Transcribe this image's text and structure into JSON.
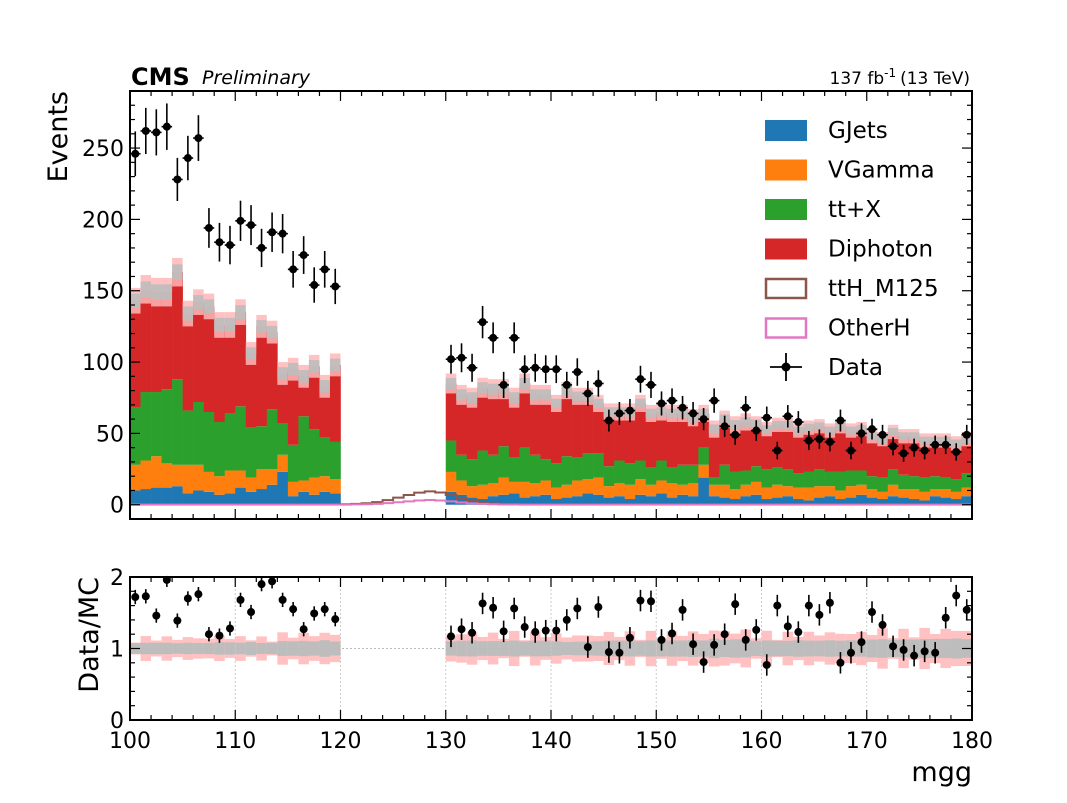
{
  "header": {
    "experiment": "CMS",
    "status": "Preliminary",
    "lumi_value": "137 fb",
    "lumi_exp": "-1",
    "energy": "(13 TeV)"
  },
  "chart_data": {
    "type": "histogram-stack-with-ratio",
    "xlabel": "mgg",
    "ylabel": "Events",
    "ratio_ylabel": "Data/MC",
    "xlim": [
      100,
      180
    ],
    "ylim": [
      -10,
      290
    ],
    "ratio_ylim": [
      0,
      2
    ],
    "x_ticks": [
      100,
      110,
      120,
      130,
      140,
      150,
      160,
      170,
      180
    ],
    "y_ticks": [
      0,
      50,
      100,
      150,
      200,
      250
    ],
    "ratio_ticks": [
      0,
      1,
      2
    ],
    "legend_position": "top-right",
    "colors": {
      "GJets": "#1f77b4",
      "VGamma": "#ff7f0e",
      "tt+X": "#2ca02c",
      "Diphoton": "#d62728",
      "ttH_M125": "#8c564b",
      "OtherH": "#e377c2",
      "unc_stat": "#bdbdbd",
      "unc_syst": "#ffb6b6"
    },
    "legend": [
      {
        "name": "GJets",
        "style": "fill"
      },
      {
        "name": "VGamma",
        "style": "fill"
      },
      {
        "name": "tt+X",
        "style": "fill"
      },
      {
        "name": "Diphoton",
        "style": "fill"
      },
      {
        "name": "ttH_M125",
        "style": "line"
      },
      {
        "name": "OtherH",
        "style": "line"
      },
      {
        "name": "Data",
        "style": "marker"
      }
    ],
    "bin_edges": [
      100,
      180
    ],
    "n_bins": 80,
    "blinded_region": [
      120,
      130
    ],
    "series_sidebands": {
      "GJets": [
        10,
        11,
        12,
        12,
        13,
        8,
        10,
        9,
        7,
        8,
        12,
        9,
        11,
        14,
        23,
        6,
        9,
        7,
        9,
        8,
        0,
        0,
        0,
        0,
        0,
        0,
        0,
        0,
        0,
        0,
        9,
        7,
        5,
        4,
        6,
        7,
        8,
        5,
        6,
        7,
        4,
        5,
        6,
        8,
        7,
        5,
        6,
        4,
        7,
        6,
        8,
        5,
        7,
        6,
        19,
        6,
        5,
        4,
        6,
        7,
        4,
        5,
        6,
        4,
        3,
        5,
        6,
        4,
        5,
        7,
        5,
        4,
        6,
        5,
        4,
        3,
        6,
        5,
        4,
        6
      ],
      "VGamma": [
        18,
        20,
        22,
        17,
        15,
        20,
        18,
        14,
        13,
        16,
        12,
        10,
        14,
        11,
        12,
        10,
        8,
        12,
        11,
        10,
        0,
        0,
        0,
        0,
        0,
        0,
        0,
        0,
        0,
        0,
        14,
        10,
        8,
        10,
        9,
        12,
        8,
        11,
        9,
        10,
        8,
        9,
        11,
        10,
        12,
        8,
        9,
        10,
        11,
        8,
        9,
        10,
        7,
        9,
        9,
        8,
        9,
        7,
        8,
        9,
        8,
        9,
        7,
        8,
        9,
        8,
        7,
        6,
        8,
        7,
        6,
        5,
        8,
        6,
        7,
        6,
        5,
        6,
        5,
        6
      ],
      "tt+X": [
        40,
        48,
        45,
        52,
        60,
        38,
        44,
        42,
        38,
        40,
        45,
        35,
        30,
        42,
        22,
        26,
        45,
        34,
        27,
        26,
        0,
        0,
        0,
        0,
        0,
        0,
        0,
        0,
        0,
        0,
        22,
        18,
        19,
        24,
        20,
        22,
        17,
        24,
        20,
        15,
        17,
        20,
        16,
        18,
        17,
        14,
        16,
        15,
        13,
        12,
        14,
        11,
        14,
        13,
        12,
        5,
        14,
        12,
        10,
        11,
        13,
        12,
        12,
        10,
        11,
        12,
        10,
        13,
        11,
        10,
        9,
        10,
        11,
        10,
        9,
        10,
        9,
        8,
        9,
        10
      ],
      "Diphoton": [
        75,
        72,
        70,
        68,
        75,
        68,
        70,
        74,
        68,
        62,
        66,
        52,
        70,
        54,
        35,
        53,
        28,
        44,
        36,
        54,
        0,
        0,
        0,
        0,
        0,
        0,
        0,
        0,
        0,
        0,
        40,
        42,
        43,
        44,
        46,
        40,
        42,
        45,
        42,
        45,
        42,
        46,
        43,
        40,
        35,
        38,
        34,
        36,
        40,
        38,
        34,
        38,
        36,
        33,
        24,
        34,
        32,
        33,
        34,
        30,
        28,
        30,
        31,
        30,
        31,
        30,
        29,
        32,
        28,
        29,
        28,
        27,
        26,
        27,
        28,
        26,
        25,
        26,
        25,
        24
      ],
      "total_unc": [
        9,
        10,
        10,
        10,
        10,
        9,
        9,
        9,
        9,
        9,
        9,
        8,
        8,
        8,
        8,
        8,
        8,
        8,
        8,
        8,
        0,
        0,
        0,
        0,
        0,
        0,
        0,
        0,
        0,
        0,
        7,
        7,
        7,
        7,
        7,
        7,
        7,
        7,
        7,
        7,
        6,
        6,
        6,
        6,
        6,
        6,
        6,
        6,
        6,
        6,
        6,
        6,
        6,
        6,
        6,
        6,
        6,
        6,
        6,
        5,
        5,
        5,
        5,
        5,
        5,
        5,
        5,
        5,
        5,
        5,
        5,
        5,
        5,
        5,
        5,
        5,
        5,
        5,
        5,
        5
      ]
    },
    "ttH_M125": [
      0.2,
      0.2,
      0.2,
      0.2,
      0.2,
      0.2,
      0.2,
      0.2,
      0.2,
      0.2,
      0.2,
      0.2,
      0.2,
      0.2,
      0.2,
      0.2,
      0.2,
      0.2,
      0.2,
      0.2,
      0.3,
      0.6,
      1.0,
      1.8,
      3.2,
      5.0,
      6.8,
      8.5,
      9.4,
      8.6,
      6.8,
      4.6,
      2.8,
      1.6,
      0.9,
      0.5,
      0.4,
      0.3,
      0.3,
      0.3,
      0.2,
      0.2,
      0.2,
      0.2,
      0.2,
      0.2,
      0.2,
      0.2,
      0.2,
      0.2,
      0.2,
      0.2,
      0.2,
      0.2,
      0.2,
      0.2,
      0.2,
      0.2,
      0.2,
      0.2,
      0.2,
      0.2,
      0.2,
      0.2,
      0.2,
      0.2,
      0.2,
      0.2,
      0.2,
      0.2,
      0.2,
      0.2,
      0.2,
      0.2,
      0.2,
      0.2,
      0.2,
      0.2,
      0.2,
      0.2
    ],
    "data_points": [
      [
        100.5,
        246
      ],
      [
        101.5,
        262
      ],
      [
        102.5,
        261
      ],
      [
        103.5,
        265
      ],
      [
        104.5,
        228
      ],
      [
        105.5,
        243
      ],
      [
        106.5,
        257
      ],
      [
        107.5,
        194
      ],
      [
        108.5,
        184
      ],
      [
        109.5,
        182
      ],
      [
        110.5,
        199
      ],
      [
        111.5,
        196
      ],
      [
        112.5,
        180
      ],
      [
        113.5,
        191
      ],
      [
        114.5,
        190
      ],
      [
        115.5,
        165
      ],
      [
        116.5,
        175
      ],
      [
        117.5,
        154
      ],
      [
        118.5,
        165
      ],
      [
        119.5,
        153
      ],
      [
        130.5,
        102
      ],
      [
        131.5,
        103
      ],
      [
        132.5,
        96
      ],
      [
        133.5,
        128
      ],
      [
        134.5,
        117
      ],
      [
        135.5,
        84
      ],
      [
        136.5,
        117
      ],
      [
        137.5,
        95
      ],
      [
        138.5,
        96
      ],
      [
        139.5,
        95
      ],
      [
        140.5,
        95
      ],
      [
        141.5,
        84
      ],
      [
        142.5,
        93
      ],
      [
        143.5,
        78
      ],
      [
        144.5,
        85
      ],
      [
        145.5,
        59
      ],
      [
        146.5,
        64
      ],
      [
        147.5,
        66
      ],
      [
        148.5,
        88
      ],
      [
        149.5,
        84
      ],
      [
        150.5,
        71
      ],
      [
        151.5,
        73
      ],
      [
        152.5,
        68
      ],
      [
        153.5,
        64
      ],
      [
        154.5,
        60
      ],
      [
        155.5,
        73
      ],
      [
        156.5,
        55
      ],
      [
        157.5,
        49
      ],
      [
        158.5,
        68
      ],
      [
        159.5,
        52
      ],
      [
        160.5,
        61
      ],
      [
        161.5,
        38
      ],
      [
        162.5,
        62
      ],
      [
        163.5,
        58
      ],
      [
        164.5,
        45
      ],
      [
        165.5,
        46
      ],
      [
        166.5,
        44
      ],
      [
        167.5,
        59
      ],
      [
        168.5,
        38
      ],
      [
        169.5,
        50
      ],
      [
        170.5,
        53
      ],
      [
        171.5,
        49
      ],
      [
        172.5,
        41
      ],
      [
        173.5,
        36
      ],
      [
        174.5,
        40
      ],
      [
        175.5,
        38
      ],
      [
        176.5,
        42
      ],
      [
        177.5,
        42
      ],
      [
        178.5,
        37
      ],
      [
        179.5,
        49
      ]
    ],
    "ratio_points": [
      [
        100.5,
        1.72
      ],
      [
        101.5,
        1.73
      ],
      [
        102.5,
        1.46
      ],
      [
        103.5,
        1.96
      ],
      [
        104.5,
        1.39
      ],
      [
        105.5,
        1.7
      ],
      [
        106.5,
        1.76
      ],
      [
        107.5,
        1.2
      ],
      [
        108.5,
        1.18
      ],
      [
        109.5,
        1.28
      ],
      [
        110.5,
        1.68
      ],
      [
        111.5,
        1.51
      ],
      [
        112.5,
        1.9
      ],
      [
        113.5,
        1.94
      ],
      [
        114.5,
        1.68
      ],
      [
        115.5,
        1.55
      ],
      [
        116.5,
        1.27
      ],
      [
        117.5,
        1.49
      ],
      [
        118.5,
        1.55
      ],
      [
        119.5,
        1.41
      ],
      [
        130.5,
        1.17
      ],
      [
        131.5,
        1.27
      ],
      [
        132.5,
        1.22
      ],
      [
        133.5,
        1.63
      ],
      [
        134.5,
        1.57
      ],
      [
        135.5,
        1.24
      ],
      [
        136.5,
        1.56
      ],
      [
        137.5,
        1.3
      ],
      [
        138.5,
        1.23
      ],
      [
        139.5,
        1.25
      ],
      [
        140.5,
        1.25
      ],
      [
        141.5,
        1.4
      ],
      [
        142.5,
        1.56
      ],
      [
        143.5,
        1.02
      ],
      [
        144.5,
        1.58
      ],
      [
        145.5,
        0.95
      ],
      [
        146.5,
        0.94
      ],
      [
        147.5,
        1.15
      ],
      [
        148.5,
        1.67
      ],
      [
        149.5,
        1.66
      ],
      [
        150.5,
        1.12
      ],
      [
        151.5,
        1.21
      ],
      [
        152.5,
        1.54
      ],
      [
        153.5,
        1.06
      ],
      [
        154.5,
        0.81
      ],
      [
        155.5,
        1.05
      ],
      [
        156.5,
        1.2
      ],
      [
        157.5,
        1.62
      ],
      [
        158.5,
        1.12
      ],
      [
        159.5,
        1.26
      ],
      [
        160.5,
        0.77
      ],
      [
        161.5,
        1.6
      ],
      [
        162.5,
        1.31
      ],
      [
        163.5,
        1.23
      ],
      [
        164.5,
        1.6
      ],
      [
        165.5,
        1.47
      ],
      [
        166.5,
        1.64
      ],
      [
        167.5,
        0.8
      ],
      [
        168.5,
        0.94
      ],
      [
        169.5,
        1.09
      ],
      [
        170.5,
        1.51
      ],
      [
        171.5,
        1.33
      ],
      [
        172.5,
        1.03
      ],
      [
        173.5,
        0.98
      ],
      [
        174.5,
        0.9
      ],
      [
        175.5,
        0.96
      ],
      [
        176.5,
        0.94
      ],
      [
        177.5,
        1.43
      ],
      [
        178.5,
        1.74
      ],
      [
        179.5,
        1.54
      ]
    ]
  }
}
